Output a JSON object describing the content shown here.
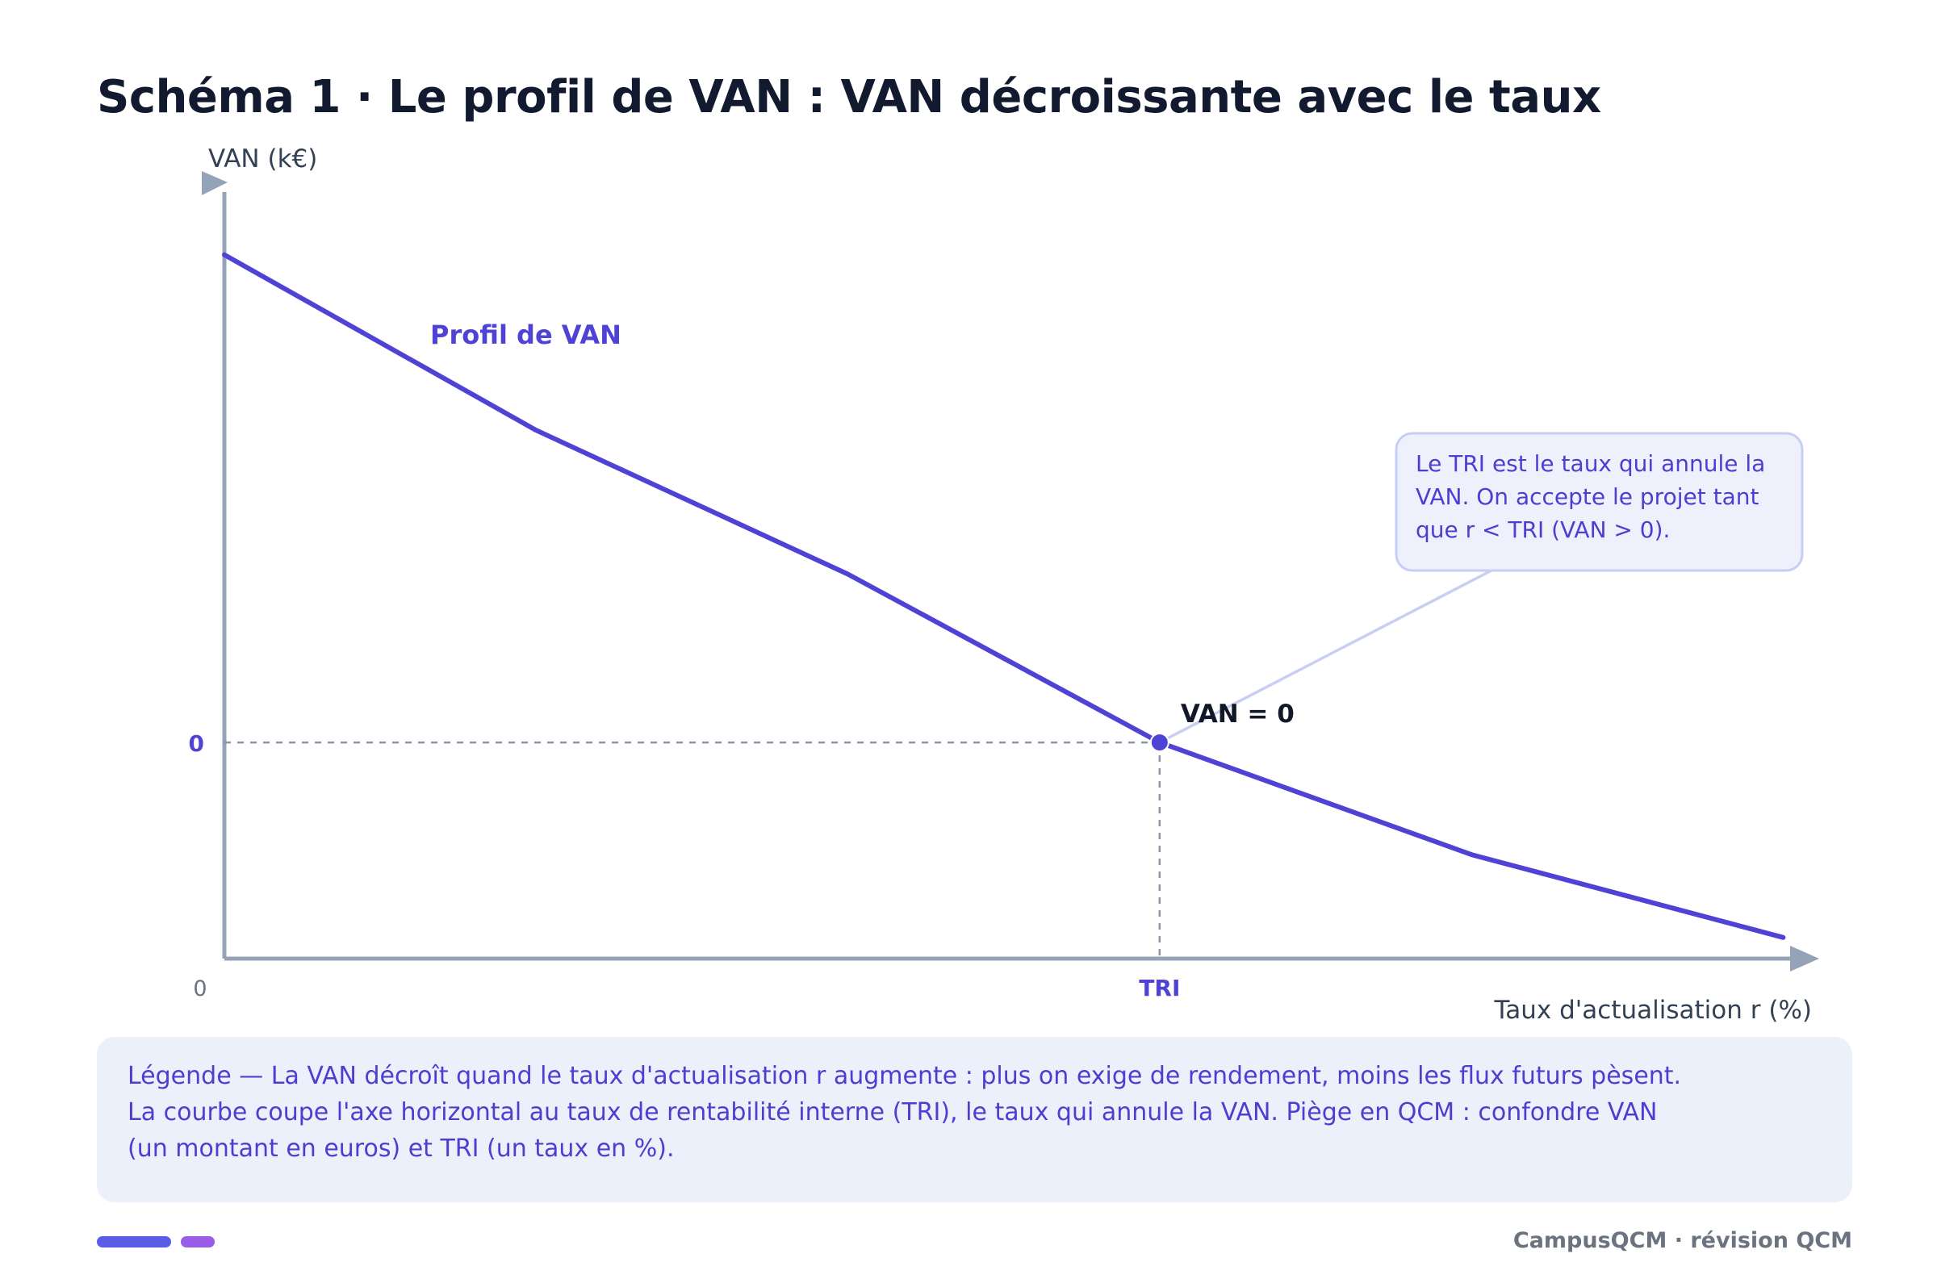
{
  "title": "Schéma 1 · Le profil de VAN : VAN décroissante avec le taux",
  "colors": {
    "curve": "#4f43d6",
    "axis": "#94a3b8",
    "dashed": "#8a94a6",
    "callout_bg": "#eef1fc",
    "callout_border": "#c7cef3",
    "connector": "#c9cff3",
    "legend_bg": "#ecf0fb",
    "legend_text": "#4a3fd0",
    "footer_bar_1": "#5b5ce6",
    "footer_bar_2": "#9a5de8"
  },
  "chart_data": {
    "type": "line",
    "title": "",
    "xlabel": "Taux d'actualisation r (%)",
    "ylabel": "VAN (k€)",
    "x_tick_labels": [
      "0",
      "TRI"
    ],
    "y_tick_labels": [
      "0"
    ],
    "series": [
      {
        "name": "Profil de VAN",
        "x": [
          0,
          1,
          2,
          3,
          4,
          5
        ],
        "y": [
          1.0,
          0.64,
          0.345,
          0.0,
          -0.23,
          -0.4
        ]
      }
    ],
    "tri_x": 3,
    "xlim": [
      0,
      5.1
    ],
    "ylim": [
      -0.44,
      1.15
    ],
    "marker_label": "VAN = 0",
    "callout": {
      "lines": [
        "Le TRI est le taux qui annule la",
        "VAN. On accepte le projet tant",
        "que r < TRI (VAN > 0)."
      ]
    },
    "grid": false
  },
  "legend": {
    "lines": [
      "Légende — La VAN décroît quand le taux d'actualisation r augmente : plus on exige de rendement, moins les flux futurs pèsent.",
      "La courbe coupe l'axe horizontal au taux de rentabilité interne (TRI), le taux qui annule la VAN. Piège en QCM : confondre VAN",
      "(un montant en euros) et TRI (un taux en %)."
    ]
  },
  "footer": {
    "text": "CampusQCM · révision QCM"
  }
}
